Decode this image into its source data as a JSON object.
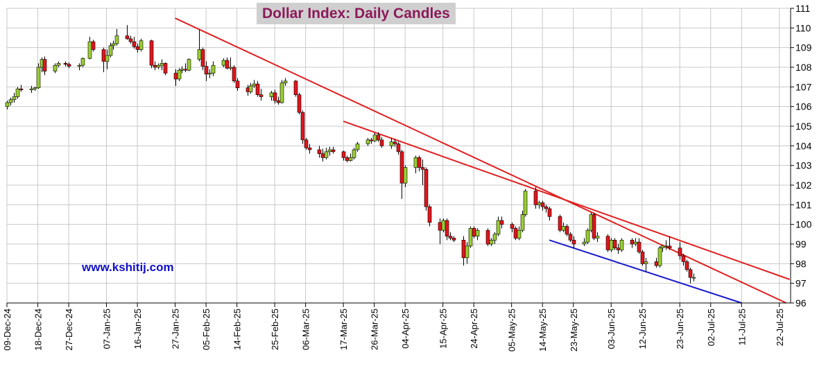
{
  "chart_data": {
    "type": "candlestick",
    "title": "Dollar Index: Daily Candles",
    "watermark": "www.kshitij.com",
    "ylim": [
      96,
      111
    ],
    "y_ticks": [
      "96",
      "97",
      "98",
      "99",
      "100",
      "101",
      "102",
      "103",
      "104",
      "105",
      "106",
      "107",
      "108",
      "109",
      "110",
      "111"
    ],
    "x_tick_labels": [
      "09-Dec-24",
      "18-Dec-24",
      "27-Dec-24",
      "07-Jan-25",
      "16-Jan-25",
      "27-Jan-25",
      "05-Feb-25",
      "14-Feb-25",
      "25-Feb-25",
      "06-Mar-25",
      "17-Mar-25",
      "26-Mar-25",
      "04-Apr-25",
      "15-Apr-25",
      "24-Apr-25",
      "05-May-25",
      "14-May-25",
      "23-May-25",
      "03-Jun-25",
      "12-Jun-25",
      "23-Jun-25",
      "02-Jul-25",
      "11-Jul-25",
      "22-Jul-25"
    ],
    "grid": true,
    "colors": {
      "up": "#9acd32",
      "down": "#e0161c",
      "wick": "#000000",
      "resistance": "#e02020",
      "support": "#1a1acc",
      "title_bg": "#cfcfcf",
      "title_text": "#8b1a5a",
      "watermark": "#1010c8"
    },
    "candles": [
      {
        "date": "09-Dec-24",
        "o": 106.0,
        "h": 106.3,
        "l": 105.85,
        "c": 106.2
      },
      {
        "date": "10-Dec-24",
        "o": 106.2,
        "h": 106.45,
        "l": 106.05,
        "c": 106.35
      },
      {
        "date": "11-Dec-24",
        "o": 106.35,
        "h": 106.7,
        "l": 106.2,
        "c": 106.5
      },
      {
        "date": "12-Dec-24",
        "o": 106.5,
        "h": 107.0,
        "l": 106.4,
        "c": 106.9
      },
      {
        "date": "13-Dec-24",
        "o": 106.9,
        "h": 107.1,
        "l": 106.75,
        "c": 106.85
      },
      {
        "date": "16-Dec-24",
        "o": 106.85,
        "h": 107.05,
        "l": 106.7,
        "c": 106.9
      },
      {
        "date": "17-Dec-24",
        "o": 106.9,
        "h": 107.0,
        "l": 106.8,
        "c": 106.95
      },
      {
        "date": "18-Dec-24",
        "o": 106.95,
        "h": 108.2,
        "l": 106.9,
        "c": 108.0
      },
      {
        "date": "19-Dec-24",
        "o": 108.0,
        "h": 108.5,
        "l": 107.75,
        "c": 108.4
      },
      {
        "date": "20-Dec-24",
        "o": 108.4,
        "h": 108.55,
        "l": 107.6,
        "c": 107.8
      },
      {
        "date": "23-Dec-24",
        "o": 107.8,
        "h": 108.2,
        "l": 107.7,
        "c": 108.1
      },
      {
        "date": "24-Dec-24",
        "o": 108.1,
        "h": 108.3,
        "l": 108.0,
        "c": 108.2
      },
      {
        "date": "26-Dec-24",
        "o": 108.2,
        "h": 108.3,
        "l": 108.05,
        "c": 108.15
      },
      {
        "date": "27-Dec-24",
        "o": 108.15,
        "h": 108.25,
        "l": 107.95,
        "c": 108.05
      },
      {
        "date": "30-Dec-24",
        "o": 108.05,
        "h": 108.2,
        "l": 107.85,
        "c": 108.1
      },
      {
        "date": "31-Dec-24",
        "o": 108.1,
        "h": 108.5,
        "l": 108.0,
        "c": 108.45
      },
      {
        "date": "02-Jan-25",
        "o": 108.45,
        "h": 109.55,
        "l": 108.4,
        "c": 109.3
      },
      {
        "date": "03-Jan-25",
        "o": 109.3,
        "h": 109.4,
        "l": 108.8,
        "c": 108.9
      },
      {
        "date": "06-Jan-25",
        "o": 108.9,
        "h": 109.0,
        "l": 107.75,
        "c": 108.3
      },
      {
        "date": "07-Jan-25",
        "o": 108.3,
        "h": 108.9,
        "l": 107.9,
        "c": 108.6
      },
      {
        "date": "08-Jan-25",
        "o": 108.6,
        "h": 109.25,
        "l": 108.5,
        "c": 109.1
      },
      {
        "date": "09-Jan-25",
        "o": 109.1,
        "h": 109.35,
        "l": 108.9,
        "c": 109.2
      },
      {
        "date": "10-Jan-25",
        "o": 109.2,
        "h": 109.95,
        "l": 109.1,
        "c": 109.6
      },
      {
        "date": "13-Jan-25",
        "o": 109.6,
        "h": 110.15,
        "l": 109.4,
        "c": 109.45
      },
      {
        "date": "14-Jan-25",
        "o": 109.45,
        "h": 109.6,
        "l": 109.2,
        "c": 109.3
      },
      {
        "date": "15-Jan-25",
        "o": 109.3,
        "h": 109.55,
        "l": 108.95,
        "c": 109.05
      },
      {
        "date": "16-Jan-25",
        "o": 109.05,
        "h": 109.2,
        "l": 108.75,
        "c": 108.9
      },
      {
        "date": "17-Jan-25",
        "o": 108.9,
        "h": 109.45,
        "l": 108.8,
        "c": 109.35
      },
      {
        "date": "20-Jan-25",
        "o": 109.35,
        "h": 109.4,
        "l": 107.95,
        "c": 108.1
      },
      {
        "date": "21-Jan-25",
        "o": 108.1,
        "h": 108.3,
        "l": 107.85,
        "c": 108.0
      },
      {
        "date": "22-Jan-25",
        "o": 108.0,
        "h": 108.2,
        "l": 107.9,
        "c": 108.1
      },
      {
        "date": "23-Jan-25",
        "o": 108.1,
        "h": 108.4,
        "l": 107.85,
        "c": 108.2
      },
      {
        "date": "24-Jan-25",
        "o": 108.2,
        "h": 108.25,
        "l": 107.6,
        "c": 107.7
      },
      {
        "date": "27-Jan-25",
        "o": 107.7,
        "h": 107.9,
        "l": 107.05,
        "c": 107.4
      },
      {
        "date": "28-Jan-25",
        "o": 107.4,
        "h": 107.95,
        "l": 107.3,
        "c": 107.85
      },
      {
        "date": "29-Jan-25",
        "o": 107.85,
        "h": 108.05,
        "l": 107.7,
        "c": 107.9
      },
      {
        "date": "30-Jan-25",
        "o": 107.9,
        "h": 108.2,
        "l": 107.75,
        "c": 107.85
      },
      {
        "date": "31-Jan-25",
        "o": 107.85,
        "h": 108.45,
        "l": 107.8,
        "c": 108.4
      },
      {
        "date": "03-Feb-25",
        "o": 108.4,
        "h": 109.9,
        "l": 108.3,
        "c": 108.9
      },
      {
        "date": "04-Feb-25",
        "o": 108.9,
        "h": 109.0,
        "l": 107.85,
        "c": 108.05
      },
      {
        "date": "05-Feb-25",
        "o": 108.05,
        "h": 108.3,
        "l": 107.3,
        "c": 107.65
      },
      {
        "date": "06-Feb-25",
        "o": 107.65,
        "h": 107.9,
        "l": 107.45,
        "c": 107.7
      },
      {
        "date": "07-Feb-25",
        "o": 107.7,
        "h": 108.3,
        "l": 107.55,
        "c": 108.1
      },
      {
        "date": "10-Feb-25",
        "o": 108.1,
        "h": 108.45,
        "l": 108.0,
        "c": 108.35
      },
      {
        "date": "11-Feb-25",
        "o": 108.35,
        "h": 108.5,
        "l": 107.9,
        "c": 107.95
      },
      {
        "date": "12-Feb-25",
        "o": 107.95,
        "h": 108.5,
        "l": 107.85,
        "c": 108.0
      },
      {
        "date": "13-Feb-25",
        "o": 108.0,
        "h": 108.1,
        "l": 107.2,
        "c": 107.3
      },
      {
        "date": "14-Feb-25",
        "o": 107.3,
        "h": 107.45,
        "l": 106.8,
        "c": 106.95
      },
      {
        "date": "17-Feb-25",
        "o": 106.95,
        "h": 107.1,
        "l": 106.55,
        "c": 106.75
      },
      {
        "date": "18-Feb-25",
        "o": 106.75,
        "h": 107.2,
        "l": 106.65,
        "c": 107.05
      },
      {
        "date": "19-Feb-25",
        "o": 107.05,
        "h": 107.35,
        "l": 106.95,
        "c": 107.15
      },
      {
        "date": "20-Feb-25",
        "o": 107.15,
        "h": 107.3,
        "l": 106.5,
        "c": 106.6
      },
      {
        "date": "21-Feb-25",
        "o": 106.6,
        "h": 106.9,
        "l": 106.3,
        "c": 106.5
      },
      {
        "date": "24-Feb-25",
        "o": 106.5,
        "h": 106.8,
        "l": 106.3,
        "c": 106.7
      },
      {
        "date": "25-Feb-25",
        "o": 106.7,
        "h": 106.85,
        "l": 106.15,
        "c": 106.3
      },
      {
        "date": "26-Feb-25",
        "o": 106.3,
        "h": 106.5,
        "l": 106.1,
        "c": 106.2
      },
      {
        "date": "27-Feb-25",
        "o": 106.2,
        "h": 107.35,
        "l": 106.15,
        "c": 107.2
      },
      {
        "date": "28-Feb-25",
        "o": 107.2,
        "h": 107.45,
        "l": 107.05,
        "c": 107.3
      },
      {
        "date": "03-Mar-25",
        "o": 107.3,
        "h": 107.35,
        "l": 106.5,
        "c": 106.6
      },
      {
        "date": "04-Mar-25",
        "o": 106.6,
        "h": 106.7,
        "l": 105.6,
        "c": 105.7
      },
      {
        "date": "05-Mar-25",
        "o": 105.7,
        "h": 105.8,
        "l": 104.1,
        "c": 104.3
      },
      {
        "date": "06-Mar-25",
        "o": 104.3,
        "h": 104.4,
        "l": 103.8,
        "c": 103.9
      },
      {
        "date": "07-Mar-25",
        "o": 103.9,
        "h": 104.1,
        "l": 103.6,
        "c": 103.8
      },
      {
        "date": "10-Mar-25",
        "o": 103.8,
        "h": 104.0,
        "l": 103.4,
        "c": 103.6
      },
      {
        "date": "11-Mar-25",
        "o": 103.6,
        "h": 103.85,
        "l": 103.2,
        "c": 103.4
      },
      {
        "date": "12-Mar-25",
        "o": 103.4,
        "h": 103.9,
        "l": 103.3,
        "c": 103.7
      },
      {
        "date": "13-Mar-25",
        "o": 103.7,
        "h": 103.95,
        "l": 103.5,
        "c": 103.8
      },
      {
        "date": "14-Mar-25",
        "o": 103.8,
        "h": 103.95,
        "l": 103.6,
        "c": 103.7
      },
      {
        "date": "17-Mar-25",
        "o": 103.7,
        "h": 103.75,
        "l": 103.25,
        "c": 103.4
      },
      {
        "date": "18-Mar-25",
        "o": 103.4,
        "h": 103.5,
        "l": 103.15,
        "c": 103.25
      },
      {
        "date": "19-Mar-25",
        "o": 103.25,
        "h": 103.6,
        "l": 103.2,
        "c": 103.4
      },
      {
        "date": "20-Mar-25",
        "o": 103.4,
        "h": 103.9,
        "l": 103.3,
        "c": 103.8
      },
      {
        "date": "21-Mar-25",
        "o": 103.8,
        "h": 104.2,
        "l": 103.7,
        "c": 104.1
      },
      {
        "date": "24-Mar-25",
        "o": 104.1,
        "h": 104.4,
        "l": 104.0,
        "c": 104.3
      },
      {
        "date": "25-Mar-25",
        "o": 104.3,
        "h": 104.4,
        "l": 104.1,
        "c": 104.25
      },
      {
        "date": "26-Mar-25",
        "o": 104.25,
        "h": 104.65,
        "l": 104.2,
        "c": 104.55
      },
      {
        "date": "27-Mar-25",
        "o": 104.55,
        "h": 104.7,
        "l": 104.2,
        "c": 104.3
      },
      {
        "date": "28-Mar-25",
        "o": 104.3,
        "h": 104.45,
        "l": 103.9,
        "c": 104.0
      },
      {
        "date": "31-Mar-25",
        "o": 104.0,
        "h": 104.4,
        "l": 103.85,
        "c": 104.2
      },
      {
        "date": "01-Apr-25",
        "o": 104.2,
        "h": 104.35,
        "l": 103.95,
        "c": 104.1
      },
      {
        "date": "02-Apr-25",
        "o": 104.1,
        "h": 104.2,
        "l": 103.55,
        "c": 103.7
      },
      {
        "date": "03-Apr-25",
        "o": 103.7,
        "h": 103.8,
        "l": 101.3,
        "c": 102.1
      },
      {
        "date": "04-Apr-25",
        "o": 102.1,
        "h": 103.0,
        "l": 101.9,
        "c": 102.9
      },
      {
        "date": "07-Apr-25",
        "o": 102.9,
        "h": 103.5,
        "l": 102.6,
        "c": 103.4
      },
      {
        "date": "08-Apr-25",
        "o": 103.4,
        "h": 103.5,
        "l": 102.7,
        "c": 102.9
      },
      {
        "date": "09-Apr-25",
        "o": 102.9,
        "h": 103.3,
        "l": 102.0,
        "c": 102.8
      },
      {
        "date": "10-Apr-25",
        "o": 102.8,
        "h": 102.9,
        "l": 100.7,
        "c": 100.9
      },
      {
        "date": "11-Apr-25",
        "o": 100.9,
        "h": 101.0,
        "l": 99.9,
        "c": 100.1
      },
      {
        "date": "14-Apr-25",
        "o": 100.1,
        "h": 100.3,
        "l": 99.0,
        "c": 99.7
      },
      {
        "date": "15-Apr-25",
        "o": 99.7,
        "h": 100.3,
        "l": 99.6,
        "c": 100.2
      },
      {
        "date": "16-Apr-25",
        "o": 100.2,
        "h": 100.3,
        "l": 99.2,
        "c": 99.4
      },
      {
        "date": "17-Apr-25",
        "o": 99.4,
        "h": 99.6,
        "l": 99.2,
        "c": 99.3
      },
      {
        "date": "18-Apr-25",
        "o": 99.3,
        "h": 99.4,
        "l": 99.1,
        "c": 99.2
      },
      {
        "date": "21-Apr-25",
        "o": 99.2,
        "h": 99.4,
        "l": 97.9,
        "c": 98.3
      },
      {
        "date": "22-Apr-25",
        "o": 98.3,
        "h": 99.1,
        "l": 98.0,
        "c": 98.9
      },
      {
        "date": "23-Apr-25",
        "o": 98.9,
        "h": 99.9,
        "l": 98.8,
        "c": 99.8
      },
      {
        "date": "24-Apr-25",
        "o": 99.8,
        "h": 99.9,
        "l": 99.3,
        "c": 99.4
      },
      {
        "date": "25-Apr-25",
        "o": 99.4,
        "h": 99.8,
        "l": 99.2,
        "c": 99.7
      },
      {
        "date": "28-Apr-25",
        "o": 99.7,
        "h": 99.8,
        "l": 98.9,
        "c": 99.0
      },
      {
        "date": "29-Apr-25",
        "o": 99.0,
        "h": 99.3,
        "l": 98.9,
        "c": 99.2
      },
      {
        "date": "30-Apr-25",
        "o": 99.2,
        "h": 99.6,
        "l": 99.0,
        "c": 99.5
      },
      {
        "date": "01-May-25",
        "o": 99.5,
        "h": 100.4,
        "l": 99.4,
        "c": 100.2
      },
      {
        "date": "02-May-25",
        "o": 100.2,
        "h": 100.4,
        "l": 99.8,
        "c": 100.0
      },
      {
        "date": "05-May-25",
        "o": 100.0,
        "h": 100.1,
        "l": 99.6,
        "c": 99.8
      },
      {
        "date": "06-May-25",
        "o": 99.8,
        "h": 99.9,
        "l": 99.2,
        "c": 99.3
      },
      {
        "date": "07-May-25",
        "o": 99.3,
        "h": 99.9,
        "l": 99.2,
        "c": 99.7
      },
      {
        "date": "08-May-25",
        "o": 99.7,
        "h": 100.7,
        "l": 99.6,
        "c": 100.5
      },
      {
        "date": "09-May-25",
        "o": 100.5,
        "h": 101.8,
        "l": 100.4,
        "c": 101.7
      },
      {
        "date": "12-May-25",
        "o": 101.7,
        "h": 101.9,
        "l": 100.8,
        "c": 101.0
      },
      {
        "date": "13-May-25",
        "o": 101.0,
        "h": 101.2,
        "l": 100.8,
        "c": 101.1
      },
      {
        "date": "14-May-25",
        "o": 101.1,
        "h": 101.2,
        "l": 100.7,
        "c": 100.9
      },
      {
        "date": "15-May-25",
        "o": 100.9,
        "h": 101.0,
        "l": 100.6,
        "c": 100.8
      },
      {
        "date": "16-May-25",
        "o": 100.8,
        "h": 100.9,
        "l": 100.2,
        "c": 100.4
      },
      {
        "date": "19-May-25",
        "o": 100.4,
        "h": 100.5,
        "l": 99.6,
        "c": 99.7
      },
      {
        "date": "20-May-25",
        "o": 99.7,
        "h": 100.1,
        "l": 99.6,
        "c": 99.9
      },
      {
        "date": "21-May-25",
        "o": 99.9,
        "h": 100.0,
        "l": 99.4,
        "c": 99.5
      },
      {
        "date": "22-May-25",
        "o": 99.5,
        "h": 99.6,
        "l": 99.1,
        "c": 99.2
      },
      {
        "date": "23-May-25",
        "o": 99.2,
        "h": 99.4,
        "l": 98.8,
        "c": 99.0
      },
      {
        "date": "26-May-25",
        "o": 99.0,
        "h": 99.3,
        "l": 98.9,
        "c": 99.1
      },
      {
        "date": "27-May-25",
        "o": 99.1,
        "h": 99.8,
        "l": 99.0,
        "c": 99.7
      },
      {
        "date": "28-May-25",
        "o": 99.7,
        "h": 100.6,
        "l": 99.6,
        "c": 100.5
      },
      {
        "date": "29-May-25",
        "o": 100.5,
        "h": 100.6,
        "l": 99.2,
        "c": 99.3
      },
      {
        "date": "30-May-25",
        "o": 99.3,
        "h": 99.6,
        "l": 99.1,
        "c": 99.4
      },
      {
        "date": "02-Jun-25",
        "o": 99.4,
        "h": 99.5,
        "l": 98.6,
        "c": 98.7
      },
      {
        "date": "03-Jun-25",
        "o": 98.7,
        "h": 99.3,
        "l": 98.6,
        "c": 99.2
      },
      {
        "date": "04-Jun-25",
        "o": 99.2,
        "h": 99.3,
        "l": 98.7,
        "c": 98.8
      },
      {
        "date": "05-Jun-25",
        "o": 98.8,
        "h": 99.0,
        "l": 98.5,
        "c": 98.7
      },
      {
        "date": "06-Jun-25",
        "o": 98.7,
        "h": 99.3,
        "l": 98.6,
        "c": 99.2
      },
      {
        "date": "09-Jun-25",
        "o": 99.2,
        "h": 99.3,
        "l": 98.8,
        "c": 99.0
      },
      {
        "date": "10-Jun-25",
        "o": 99.0,
        "h": 99.3,
        "l": 98.9,
        "c": 99.1
      },
      {
        "date": "11-Jun-25",
        "o": 99.1,
        "h": 99.3,
        "l": 98.5,
        "c": 98.6
      },
      {
        "date": "12-Jun-25",
        "o": 98.6,
        "h": 98.7,
        "l": 97.9,
        "c": 98.0
      },
      {
        "date": "13-Jun-25",
        "o": 98.0,
        "h": 98.3,
        "l": 97.6,
        "c": 98.1
      },
      {
        "date": "16-Jun-25",
        "o": 98.1,
        "h": 98.3,
        "l": 97.8,
        "c": 97.9
      },
      {
        "date": "17-Jun-25",
        "o": 97.9,
        "h": 98.9,
        "l": 97.8,
        "c": 98.8
      },
      {
        "date": "18-Jun-25",
        "o": 98.8,
        "h": 98.9,
        "l": 98.6,
        "c": 98.9
      },
      {
        "date": "19-Jun-25",
        "o": 98.9,
        "h": 99.2,
        "l": 98.7,
        "c": 98.9
      },
      {
        "date": "20-Jun-25",
        "o": 98.9,
        "h": 99.4,
        "l": 98.7,
        "c": 98.8
      },
      {
        "date": "23-Jun-25",
        "o": 98.8,
        "h": 99.1,
        "l": 98.2,
        "c": 98.4
      },
      {
        "date": "24-Jun-25",
        "o": 98.4,
        "h": 98.5,
        "l": 97.9,
        "c": 98.1
      },
      {
        "date": "25-Jun-25",
        "o": 98.1,
        "h": 98.2,
        "l": 97.6,
        "c": 97.7
      },
      {
        "date": "26-Jun-25",
        "o": 97.7,
        "h": 97.8,
        "l": 97.0,
        "c": 97.3
      },
      {
        "date": "27-Jun-25",
        "o": 97.3,
        "h": 97.5,
        "l": 97.1,
        "c": 97.3
      }
    ],
    "trendlines": [
      {
        "color": "resistance",
        "from": {
          "x": "27-Jan-25",
          "y": 110.5
        },
        "to": {
          "x": "24-Jul-25",
          "y": 96.0
        }
      },
      {
        "color": "resistance",
        "from": {
          "x": "17-Mar-25",
          "y": 105.25
        },
        "to": {
          "x": "25-Jul-25",
          "y": 97.2
        }
      },
      {
        "color": "support",
        "from": {
          "x": "16-May-25",
          "y": 99.2
        },
        "to": {
          "x": "11-Jul-25",
          "y": 96.0
        }
      }
    ]
  }
}
